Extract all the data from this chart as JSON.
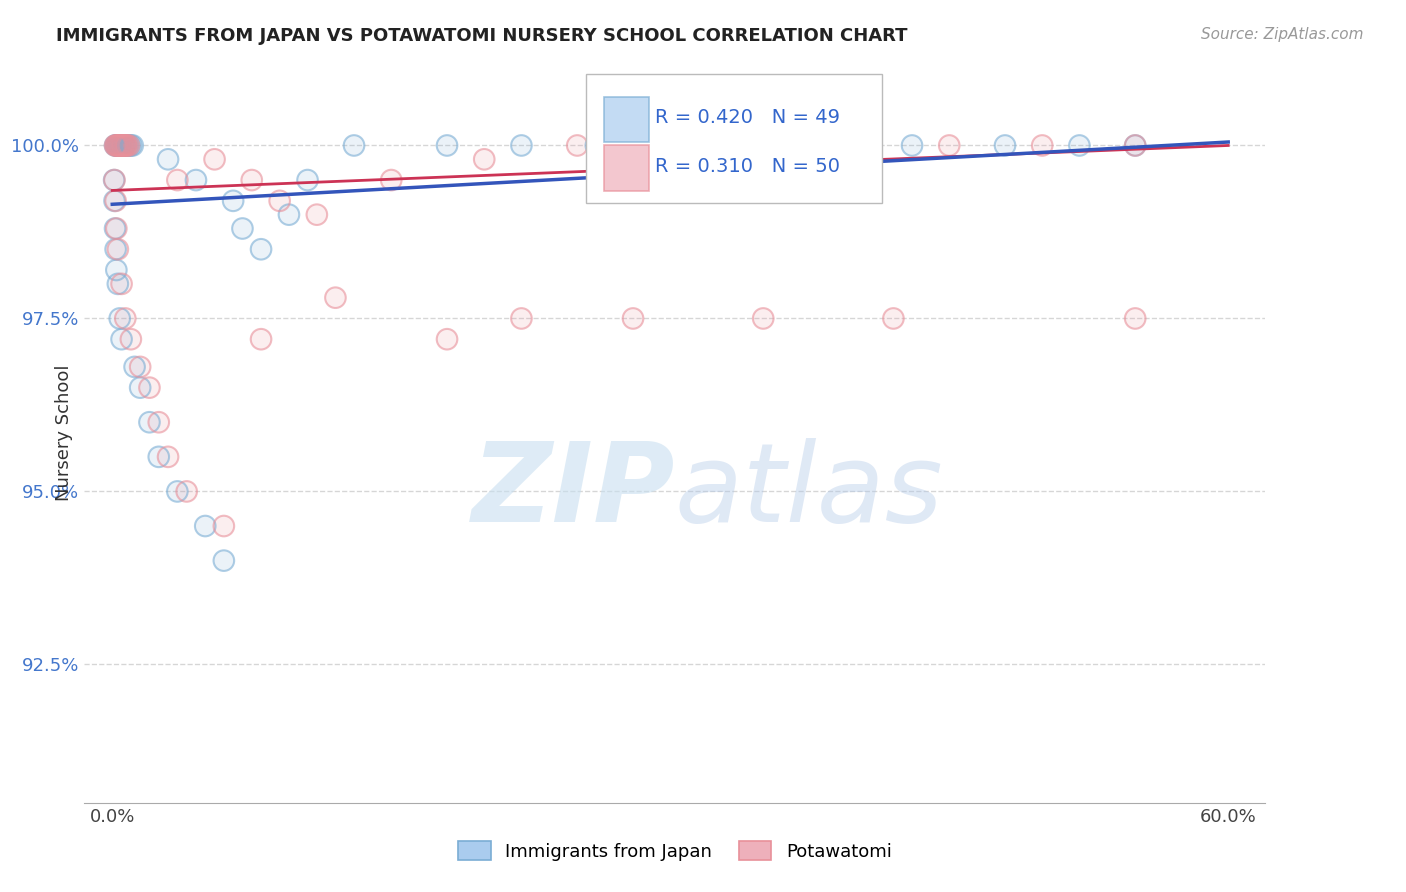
{
  "title": "IMMIGRANTS FROM JAPAN VS POTAWATOMI NURSERY SCHOOL CORRELATION CHART",
  "source": "Source: ZipAtlas.com",
  "ylabel": "Nursery School",
  "xlim": [
    -1.5,
    62
  ],
  "ylim": [
    90.5,
    101.2
  ],
  "yticks": [
    92.5,
    95.0,
    97.5,
    100.0
  ],
  "xticks": [
    0.0,
    60.0
  ],
  "xticklabels": [
    "0.0%",
    "60.0%"
  ],
  "yticklabels": [
    "92.5%",
    "95.0%",
    "97.5%",
    "100.0%"
  ],
  "grid_color": "#cccccc",
  "background_color": "#ffffff",
  "blue_color": "#7aadd4",
  "pink_color": "#e8909a",
  "R_blue": 0.42,
  "N_blue": 49,
  "R_pink": 0.31,
  "N_pink": 50,
  "legend_label_blue": "Immigrants from Japan",
  "legend_label_pink": "Potawatomi",
  "blue_line_color": "#3355bb",
  "pink_line_color": "#cc3355",
  "blue_scatter_x": [
    0.15,
    0.2,
    0.25,
    0.3,
    0.35,
    0.4,
    0.45,
    0.5,
    0.6,
    0.65,
    0.7,
    0.8,
    0.9,
    1.0,
    1.1,
    0.1,
    0.12,
    0.15,
    0.18,
    0.22,
    3.0,
    4.5,
    6.5,
    7.0,
    8.0,
    9.5,
    10.5,
    13.0,
    18.0,
    22.0,
    26.0,
    30.0,
    33.0,
    35.0,
    38.0,
    43.0,
    48.0,
    52.0,
    55.0,
    0.3,
    0.4,
    0.5,
    1.2,
    1.5,
    2.0,
    2.5,
    3.5,
    5.0,
    6.0
  ],
  "blue_scatter_y": [
    100.0,
    100.0,
    100.0,
    100.0,
    100.0,
    100.0,
    100.0,
    100.0,
    100.0,
    100.0,
    100.0,
    100.0,
    100.0,
    100.0,
    100.0,
    99.5,
    99.2,
    98.8,
    98.5,
    98.2,
    99.8,
    99.5,
    99.2,
    98.8,
    98.5,
    99.0,
    99.5,
    100.0,
    100.0,
    100.0,
    100.0,
    100.0,
    100.0,
    100.0,
    100.0,
    100.0,
    100.0,
    100.0,
    100.0,
    98.0,
    97.5,
    97.2,
    96.8,
    96.5,
    96.0,
    95.5,
    95.0,
    94.5,
    94.0
  ],
  "pink_scatter_x": [
    0.15,
    0.2,
    0.25,
    0.3,
    0.35,
    0.4,
    0.45,
    0.5,
    0.55,
    0.6,
    0.65,
    0.7,
    0.75,
    0.8,
    0.9,
    0.12,
    0.18,
    0.22,
    3.5,
    5.5,
    7.5,
    9.0,
    11.0,
    15.0,
    20.0,
    25.0,
    30.0,
    35.0,
    40.0,
    45.0,
    50.0,
    55.0,
    0.3,
    0.5,
    0.7,
    1.0,
    1.5,
    2.0,
    2.5,
    3.0,
    4.0,
    6.0,
    8.0,
    12.0,
    18.0,
    22.0,
    28.0,
    35.0,
    42.0,
    55.0
  ],
  "pink_scatter_y": [
    100.0,
    100.0,
    100.0,
    100.0,
    100.0,
    100.0,
    100.0,
    100.0,
    100.0,
    100.0,
    100.0,
    100.0,
    100.0,
    100.0,
    100.0,
    99.5,
    99.2,
    98.8,
    99.5,
    99.8,
    99.5,
    99.2,
    99.0,
    99.5,
    99.8,
    100.0,
    100.0,
    100.0,
    100.0,
    100.0,
    100.0,
    100.0,
    98.5,
    98.0,
    97.5,
    97.2,
    96.8,
    96.5,
    96.0,
    95.5,
    95.0,
    94.5,
    97.2,
    97.8,
    97.2,
    97.5,
    97.5,
    97.5,
    97.5,
    97.5
  ]
}
